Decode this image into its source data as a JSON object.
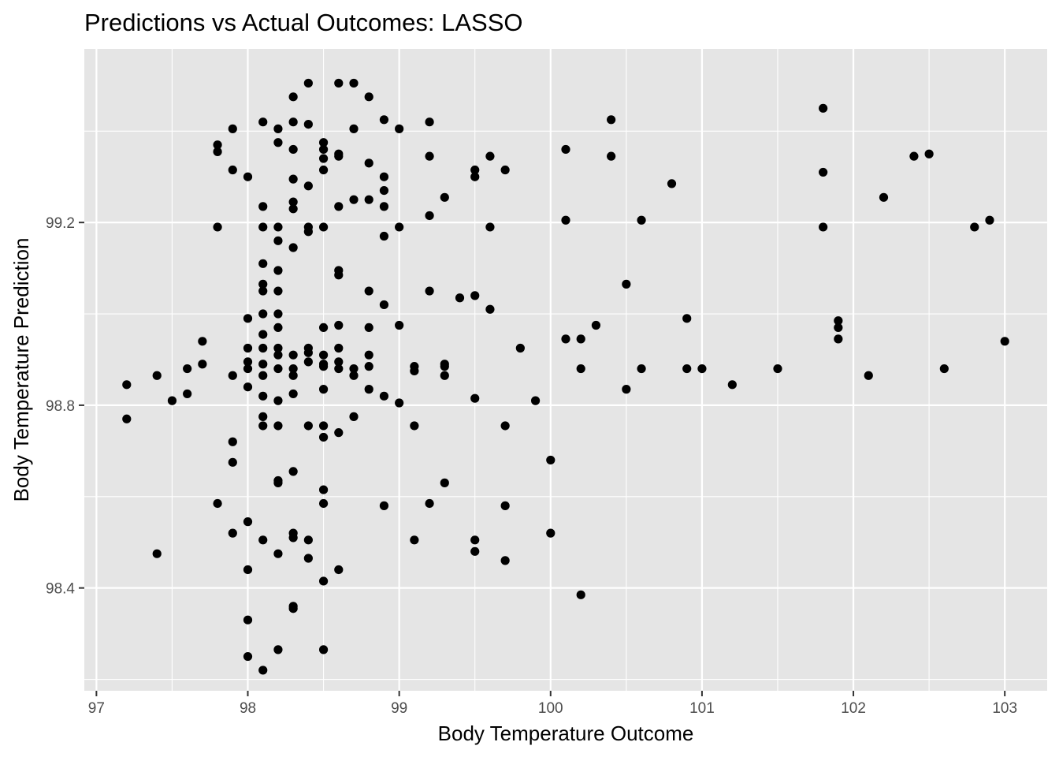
{
  "chart_data": {
    "type": "scatter",
    "title": "Predictions vs Actual Outcomes: LASSO",
    "xlabel": "Body Temperature Outcome",
    "ylabel": "Body Temperature Prediction",
    "xlim": [
      96.92,
      103.28
    ],
    "ylim": [
      98.175,
      99.58
    ],
    "x_ticks": [
      97,
      98,
      99,
      100,
      101,
      102,
      103
    ],
    "x_tick_labels": [
      "97",
      "98",
      "99",
      "100",
      "101",
      "102",
      "103"
    ],
    "y_ticks": [
      98.4,
      98.8,
      99.2
    ],
    "y_tick_labels": [
      "98.4",
      "98.8",
      "99.2"
    ],
    "grid": true,
    "colors": {
      "panel": "#e5e5e5",
      "point": "#000000",
      "grid": "#ffffff"
    },
    "points": [
      [
        97.2,
        98.845
      ],
      [
        97.2,
        98.77
      ],
      [
        97.4,
        98.865
      ],
      [
        97.4,
        98.475
      ],
      [
        97.5,
        98.81
      ],
      [
        97.6,
        98.88
      ],
      [
        97.6,
        98.825
      ],
      [
        97.7,
        98.94
      ],
      [
        97.7,
        98.89
      ],
      [
        97.8,
        99.37
      ],
      [
        97.8,
        99.355
      ],
      [
        97.8,
        99.19
      ],
      [
        97.8,
        98.585
      ],
      [
        97.9,
        99.405
      ],
      [
        97.9,
        99.315
      ],
      [
        97.9,
        98.865
      ],
      [
        97.9,
        98.72
      ],
      [
        97.9,
        98.675
      ],
      [
        97.9,
        98.52
      ],
      [
        98.0,
        99.3
      ],
      [
        98.0,
        98.99
      ],
      [
        98.0,
        98.925
      ],
      [
        98.0,
        98.895
      ],
      [
        98.0,
        98.88
      ],
      [
        98.0,
        98.84
      ],
      [
        98.0,
        98.545
      ],
      [
        98.0,
        98.44
      ],
      [
        98.0,
        98.33
      ],
      [
        98.0,
        98.25
      ],
      [
        98.1,
        99.42
      ],
      [
        98.1,
        99.235
      ],
      [
        98.1,
        99.19
      ],
      [
        98.1,
        99.11
      ],
      [
        98.1,
        99.065
      ],
      [
        98.1,
        99.05
      ],
      [
        98.1,
        99.0
      ],
      [
        98.1,
        98.955
      ],
      [
        98.1,
        98.925
      ],
      [
        98.1,
        98.89
      ],
      [
        98.1,
        98.865
      ],
      [
        98.1,
        98.82
      ],
      [
        98.1,
        98.775
      ],
      [
        98.1,
        98.755
      ],
      [
        98.1,
        98.505
      ],
      [
        98.1,
        98.22
      ],
      [
        98.2,
        99.405
      ],
      [
        98.2,
        99.375
      ],
      [
        98.2,
        99.19
      ],
      [
        98.2,
        99.16
      ],
      [
        98.2,
        99.095
      ],
      [
        98.2,
        99.05
      ],
      [
        98.2,
        99.0
      ],
      [
        98.2,
        98.97
      ],
      [
        98.2,
        98.925
      ],
      [
        98.2,
        98.91
      ],
      [
        98.2,
        98.88
      ],
      [
        98.2,
        98.81
      ],
      [
        98.2,
        98.755
      ],
      [
        98.2,
        98.635
      ],
      [
        98.2,
        98.63
      ],
      [
        98.2,
        98.475
      ],
      [
        98.2,
        98.265
      ],
      [
        98.3,
        99.475
      ],
      [
        98.3,
        99.42
      ],
      [
        98.3,
        99.36
      ],
      [
        98.3,
        99.295
      ],
      [
        98.3,
        99.245
      ],
      [
        98.3,
        99.23
      ],
      [
        98.3,
        99.145
      ],
      [
        98.3,
        98.91
      ],
      [
        98.3,
        98.88
      ],
      [
        98.3,
        98.865
      ],
      [
        98.3,
        98.825
      ],
      [
        98.3,
        98.655
      ],
      [
        98.3,
        98.52
      ],
      [
        98.3,
        98.51
      ],
      [
        98.3,
        98.36
      ],
      [
        98.3,
        98.355
      ],
      [
        98.4,
        99.505
      ],
      [
        98.4,
        99.415
      ],
      [
        98.4,
        99.28
      ],
      [
        98.4,
        99.19
      ],
      [
        98.4,
        99.18
      ],
      [
        98.4,
        98.925
      ],
      [
        98.4,
        98.915
      ],
      [
        98.4,
        98.895
      ],
      [
        98.4,
        98.755
      ],
      [
        98.4,
        98.505
      ],
      [
        98.4,
        98.465
      ],
      [
        98.5,
        99.375
      ],
      [
        98.5,
        99.36
      ],
      [
        98.5,
        99.34
      ],
      [
        98.5,
        99.315
      ],
      [
        98.5,
        99.19
      ],
      [
        98.5,
        98.97
      ],
      [
        98.5,
        98.91
      ],
      [
        98.5,
        98.89
      ],
      [
        98.5,
        98.885
      ],
      [
        98.5,
        98.835
      ],
      [
        98.5,
        98.755
      ],
      [
        98.5,
        98.73
      ],
      [
        98.5,
        98.615
      ],
      [
        98.5,
        98.585
      ],
      [
        98.5,
        98.415
      ],
      [
        98.5,
        98.265
      ],
      [
        98.6,
        99.505
      ],
      [
        98.6,
        99.35
      ],
      [
        98.6,
        99.345
      ],
      [
        98.6,
        99.235
      ],
      [
        98.6,
        99.095
      ],
      [
        98.6,
        99.085
      ],
      [
        98.6,
        98.975
      ],
      [
        98.6,
        98.925
      ],
      [
        98.6,
        98.895
      ],
      [
        98.6,
        98.88
      ],
      [
        98.6,
        98.74
      ],
      [
        98.6,
        98.44
      ],
      [
        98.7,
        99.505
      ],
      [
        98.7,
        99.405
      ],
      [
        98.7,
        99.25
      ],
      [
        98.7,
        98.88
      ],
      [
        98.7,
        98.865
      ],
      [
        98.7,
        98.775
      ],
      [
        98.8,
        99.475
      ],
      [
        98.8,
        99.33
      ],
      [
        98.8,
        99.25
      ],
      [
        98.8,
        99.05
      ],
      [
        98.8,
        98.97
      ],
      [
        98.8,
        98.91
      ],
      [
        98.8,
        98.885
      ],
      [
        98.8,
        98.835
      ],
      [
        98.9,
        99.425
      ],
      [
        98.9,
        99.3
      ],
      [
        98.9,
        99.27
      ],
      [
        98.9,
        99.235
      ],
      [
        98.9,
        99.17
      ],
      [
        98.9,
        99.02
      ],
      [
        98.9,
        98.82
      ],
      [
        98.9,
        98.58
      ],
      [
        99.0,
        99.405
      ],
      [
        99.0,
        99.19
      ],
      [
        99.0,
        98.975
      ],
      [
        99.0,
        98.805
      ],
      [
        99.1,
        98.885
      ],
      [
        99.1,
        98.875
      ],
      [
        99.1,
        98.755
      ],
      [
        99.1,
        98.505
      ],
      [
        99.2,
        99.42
      ],
      [
        99.2,
        99.345
      ],
      [
        99.2,
        99.215
      ],
      [
        99.2,
        99.05
      ],
      [
        99.2,
        98.585
      ],
      [
        99.3,
        99.255
      ],
      [
        99.3,
        98.89
      ],
      [
        99.3,
        98.885
      ],
      [
        99.3,
        98.865
      ],
      [
        99.3,
        98.63
      ],
      [
        99.4,
        99.035
      ],
      [
        99.5,
        99.315
      ],
      [
        99.5,
        99.3
      ],
      [
        99.5,
        99.04
      ],
      [
        99.5,
        98.815
      ],
      [
        99.5,
        98.505
      ],
      [
        99.5,
        98.48
      ],
      [
        99.6,
        99.345
      ],
      [
        99.6,
        99.19
      ],
      [
        99.6,
        99.01
      ],
      [
        99.7,
        99.315
      ],
      [
        99.7,
        98.755
      ],
      [
        99.7,
        98.58
      ],
      [
        99.7,
        98.46
      ],
      [
        99.8,
        98.925
      ],
      [
        99.9,
        98.81
      ],
      [
        100.0,
        98.68
      ],
      [
        100.0,
        98.52
      ],
      [
        100.1,
        99.36
      ],
      [
        100.1,
        99.205
      ],
      [
        100.1,
        98.945
      ],
      [
        100.2,
        98.945
      ],
      [
        100.2,
        98.88
      ],
      [
        100.2,
        98.385
      ],
      [
        100.3,
        98.975
      ],
      [
        100.4,
        99.425
      ],
      [
        100.4,
        99.345
      ],
      [
        100.5,
        99.065
      ],
      [
        100.5,
        98.835
      ],
      [
        100.6,
        99.205
      ],
      [
        100.6,
        98.88
      ],
      [
        100.8,
        99.285
      ],
      [
        100.9,
        98.99
      ],
      [
        100.9,
        98.88
      ],
      [
        101.0,
        98.88
      ],
      [
        101.2,
        98.845
      ],
      [
        101.5,
        98.88
      ],
      [
        101.8,
        99.45
      ],
      [
        101.8,
        99.31
      ],
      [
        101.8,
        99.19
      ],
      [
        101.9,
        98.985
      ],
      [
        101.9,
        98.97
      ],
      [
        101.9,
        98.945
      ],
      [
        102.1,
        98.865
      ],
      [
        102.2,
        99.255
      ],
      [
        102.4,
        99.345
      ],
      [
        102.5,
        99.35
      ],
      [
        102.6,
        98.88
      ],
      [
        102.8,
        99.19
      ],
      [
        102.9,
        99.205
      ],
      [
        103.0,
        98.94
      ]
    ]
  }
}
